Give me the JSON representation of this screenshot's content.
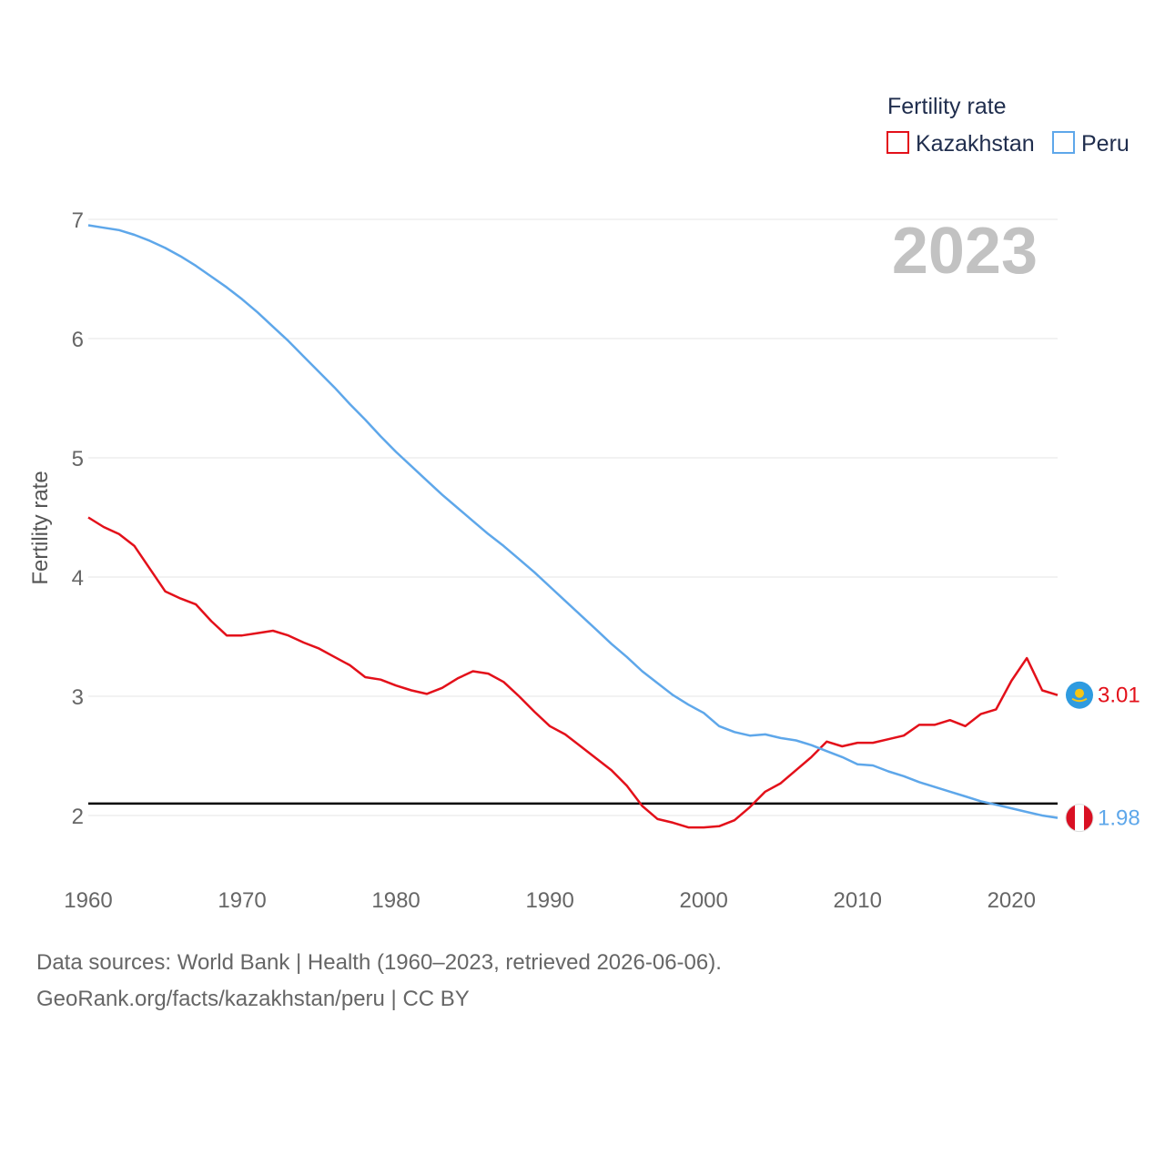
{
  "chart_data": {
    "type": "line",
    "ylabel": "Fertility rate",
    "xlabel": "",
    "legend_title": "Fertility rate",
    "legend_position": "top-right",
    "year_label": "2023",
    "xlim": [
      1960,
      2023
    ],
    "ylim": [
      1.5,
      7.05
    ],
    "x_ticks": [
      1960,
      1970,
      1980,
      1990,
      2000,
      2010,
      2020
    ],
    "y_ticks": [
      2,
      3,
      4,
      5,
      6,
      7
    ],
    "reference_line": {
      "value": 2.1,
      "color": "#000000"
    },
    "x": [
      1960,
      1961,
      1962,
      1963,
      1964,
      1965,
      1966,
      1967,
      1968,
      1969,
      1970,
      1971,
      1972,
      1973,
      1974,
      1975,
      1976,
      1977,
      1978,
      1979,
      1980,
      1981,
      1982,
      1983,
      1984,
      1985,
      1986,
      1987,
      1988,
      1989,
      1990,
      1991,
      1992,
      1993,
      1994,
      1995,
      1996,
      1997,
      1998,
      1999,
      2000,
      2001,
      2002,
      2003,
      2004,
      2005,
      2006,
      2007,
      2008,
      2009,
      2010,
      2011,
      2012,
      2013,
      2014,
      2015,
      2016,
      2017,
      2018,
      2019,
      2020,
      2021,
      2022,
      2023
    ],
    "series": [
      {
        "name": "Kazakhstan",
        "color": "#e3101a",
        "end_label": "3.01",
        "flag": "kazakhstan-flag",
        "values": [
          4.5,
          4.42,
          4.36,
          4.26,
          4.07,
          3.88,
          3.82,
          3.77,
          3.63,
          3.51,
          3.51,
          3.53,
          3.55,
          3.51,
          3.45,
          3.4,
          3.33,
          3.26,
          3.16,
          3.14,
          3.09,
          3.05,
          3.02,
          3.07,
          3.15,
          3.21,
          3.19,
          3.12,
          3.0,
          2.87,
          2.75,
          2.68,
          2.58,
          2.48,
          2.38,
          2.25,
          2.08,
          1.97,
          1.94,
          1.9,
          1.9,
          1.91,
          1.96,
          2.07,
          2.2,
          2.27,
          2.38,
          2.49,
          2.62,
          2.58,
          2.61,
          2.61,
          2.64,
          2.67,
          2.76,
          2.76,
          2.8,
          2.75,
          2.85,
          2.89,
          3.13,
          3.32,
          3.05,
          3.01
        ]
      },
      {
        "name": "Peru",
        "color": "#5ea7ea",
        "end_label": "1.98",
        "flag": "peru-flag",
        "values": [
          6.95,
          6.93,
          6.91,
          6.87,
          6.82,
          6.76,
          6.69,
          6.61,
          6.52,
          6.43,
          6.33,
          6.22,
          6.1,
          5.98,
          5.85,
          5.72,
          5.59,
          5.45,
          5.32,
          5.18,
          5.05,
          4.93,
          4.81,
          4.69,
          4.58,
          4.47,
          4.36,
          4.26,
          4.15,
          4.04,
          3.92,
          3.8,
          3.68,
          3.56,
          3.44,
          3.33,
          3.21,
          3.11,
          3.01,
          2.93,
          2.86,
          2.75,
          2.7,
          2.67,
          2.68,
          2.65,
          2.63,
          2.59,
          2.54,
          2.49,
          2.43,
          2.42,
          2.37,
          2.33,
          2.28,
          2.24,
          2.2,
          2.16,
          2.12,
          2.09,
          2.06,
          2.03,
          2.0,
          1.98
        ]
      }
    ]
  },
  "footer": {
    "sources": "Data sources: World Bank | Health (1960–2023, retrieved 2026-06-06).",
    "credit": "GeoRank.org/facts/kazakhstan/peru | CC BY"
  }
}
